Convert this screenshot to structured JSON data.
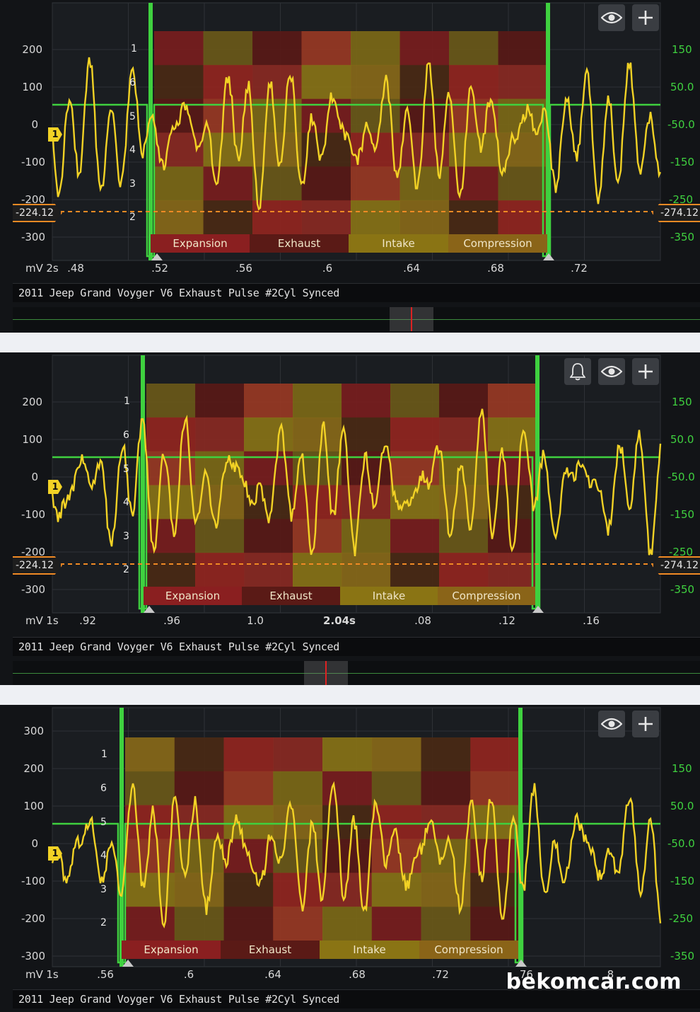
{
  "colors": {
    "signal": "#f2d225",
    "sync": "#3fd13f",
    "cursor": "#f08a24",
    "background": "#121417"
  },
  "panels": [
    {
      "y_left": [
        "200",
        "100",
        "0",
        "-100",
        "-200",
        "-300"
      ],
      "y_right": [
        "150",
        "50.0",
        "-50.0",
        "-150",
        "-250",
        "-350"
      ],
      "unit": "mV",
      "x_labels": [
        {
          "t": "2s",
          "bold": false
        },
        {
          "t": ".48",
          "bold": false
        },
        {
          "t": ".52",
          "bold": false
        },
        {
          "t": ".56",
          "bold": false
        },
        {
          "t": ".6",
          "bold": false
        },
        {
          "t": ".64",
          "bold": false
        },
        {
          "t": ".68",
          "bold": false
        },
        {
          "t": ".72",
          "bold": false
        }
      ],
      "cursor_left": "-224.12",
      "cursor_right": "-274.12",
      "cylinders": [
        "1",
        "6",
        "5",
        "4",
        "3",
        "2"
      ],
      "marker": "1",
      "phases": [
        "Expansion",
        "Exhaust",
        "Intake",
        "Compression"
      ],
      "title": "2011 Jeep Grand Voyger V6 Exhaust Pulse #2Cyl Synced",
      "icons": [
        "eye-icon",
        "plus-icon"
      ],
      "show_overview": true
    },
    {
      "y_left": [
        "200",
        "100",
        "0",
        "-100",
        "-200",
        "-300"
      ],
      "y_right": [
        "150",
        "50.0",
        "-50.0",
        "-150",
        "-250",
        "-350"
      ],
      "unit": "mV",
      "x_labels": [
        {
          "t": "1s",
          "bold": false
        },
        {
          "t": ".92",
          "bold": false
        },
        {
          "t": ".96",
          "bold": false
        },
        {
          "t": "1.0",
          "bold": false
        },
        {
          "t": "2.04s",
          "bold": true
        },
        {
          "t": ".08",
          "bold": false
        },
        {
          "t": ".12",
          "bold": false
        },
        {
          "t": ".16",
          "bold": false
        }
      ],
      "cursor_left": "-224.12",
      "cursor_right": "-274.12",
      "cylinders": [
        "1",
        "6",
        "5",
        "4",
        "3",
        "2"
      ],
      "marker": "1",
      "phases": [
        "Expansion",
        "Exhaust",
        "Intake",
        "Compression"
      ],
      "title": "2011 Jeep Grand Voyger V6 Exhaust Pulse #2Cyl Synced",
      "icons": [
        "bell-icon",
        "eye-icon",
        "plus-icon"
      ],
      "show_overview": true
    },
    {
      "y_left": [
        "300",
        "200",
        "100",
        "0",
        "-100",
        "-200",
        "-300"
      ],
      "y_right": [
        "150",
        "50.0",
        "-50.0",
        "-150",
        "-250",
        "-350"
      ],
      "unit": "mV",
      "x_labels": [
        {
          "t": "1s",
          "bold": false
        },
        {
          "t": ".56",
          "bold": false
        },
        {
          "t": ".6",
          "bold": false
        },
        {
          "t": ".64",
          "bold": false
        },
        {
          "t": ".68",
          "bold": false
        },
        {
          "t": ".72",
          "bold": false
        },
        {
          "t": ".76",
          "bold": false
        },
        {
          "t": ".8",
          "bold": false
        }
      ],
      "cylinders": [
        "1",
        "6",
        "5",
        "4",
        "3",
        "2"
      ],
      "marker": "1",
      "phases": [
        "Expansion",
        "Exhaust",
        "Intake",
        "Compression"
      ],
      "title": "2011 Jeep Grand Voyger V6 Exhaust Pulse #2Cyl Synced",
      "icons": [
        "eye-icon",
        "plus-icon"
      ],
      "show_overview": false
    }
  ],
  "watermark": "bekomcar.com"
}
